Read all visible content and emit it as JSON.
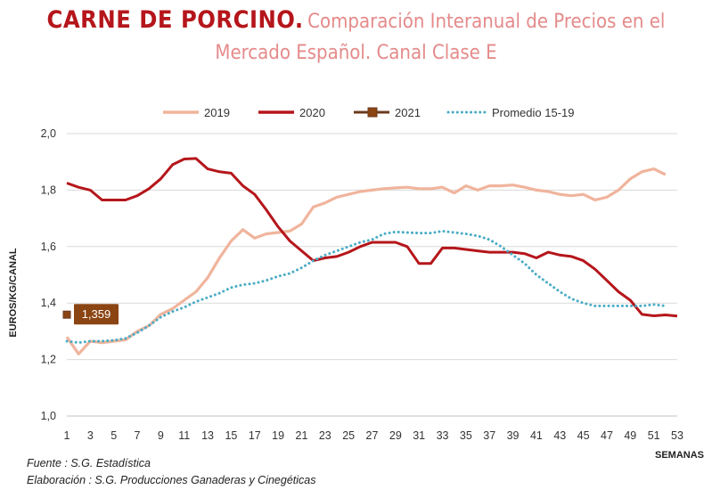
{
  "title": {
    "main": "CARNE DE PORCINO.",
    "sub_line1": "Comparación Interanual de Precios en el",
    "sub_line2": "Mercado Español. Canal Clase E"
  },
  "footer": {
    "fuente": "Fuente :  S.G. Estadística",
    "elaboracion": "Elaboración : S.G. Producciones Ganaderas y Cinegéticas"
  },
  "chart_data": {
    "type": "line",
    "xlabel": "SEMANAS",
    "ylabel": "EUROS/KG/CANAL",
    "ylim": [
      1.0,
      2.0
    ],
    "xlim": [
      1,
      53
    ],
    "y_ticks": [
      "1,0",
      "1,2",
      "1,4",
      "1,6",
      "1,8",
      "2,0"
    ],
    "x_ticks": [
      "1",
      "3",
      "5",
      "7",
      "9",
      "11",
      "13",
      "15",
      "17",
      "19",
      "21",
      "23",
      "25",
      "27",
      "29",
      "31",
      "33",
      "35",
      "37",
      "39",
      "41",
      "43",
      "45",
      "47",
      "49",
      "51",
      "53"
    ],
    "grid": "horizontal",
    "legend_position": "top",
    "series": [
      {
        "name": "2019",
        "color": "#f0b49c",
        "style": "solid",
        "x": [
          1,
          2,
          3,
          4,
          5,
          6,
          7,
          8,
          9,
          10,
          11,
          12,
          13,
          14,
          15,
          16,
          17,
          18,
          19,
          20,
          21,
          22,
          23,
          24,
          25,
          26,
          27,
          28,
          29,
          30,
          31,
          32,
          33,
          34,
          35,
          36,
          37,
          38,
          39,
          40,
          41,
          42,
          43,
          44,
          45,
          46,
          47,
          48,
          49,
          50,
          51,
          52
        ],
        "values": [
          1.28,
          1.22,
          1.265,
          1.26,
          1.265,
          1.27,
          1.3,
          1.32,
          1.36,
          1.38,
          1.41,
          1.44,
          1.49,
          1.56,
          1.62,
          1.66,
          1.63,
          1.645,
          1.65,
          1.655,
          1.68,
          1.74,
          1.755,
          1.775,
          1.785,
          1.795,
          1.8,
          1.805,
          1.808,
          1.81,
          1.805,
          1.805,
          1.81,
          1.79,
          1.815,
          1.8,
          1.815,
          1.815,
          1.818,
          1.81,
          1.8,
          1.795,
          1.785,
          1.78,
          1.785,
          1.765,
          1.775,
          1.8,
          1.84,
          1.865,
          1.875,
          1.855
        ]
      },
      {
        "name": "2020",
        "color": "#b5161b",
        "style": "solid",
        "x": [
          1,
          2,
          3,
          4,
          5,
          6,
          7,
          8,
          9,
          10,
          11,
          12,
          13,
          14,
          15,
          16,
          17,
          18,
          19,
          20,
          21,
          22,
          23,
          24,
          25,
          26,
          27,
          28,
          29,
          30,
          31,
          32,
          33,
          34,
          35,
          36,
          37,
          38,
          39,
          40,
          41,
          42,
          43,
          44,
          45,
          46,
          47,
          48,
          49,
          50,
          51,
          52,
          53
        ],
        "values": [
          1.825,
          1.81,
          1.8,
          1.765,
          1.765,
          1.765,
          1.78,
          1.805,
          1.84,
          1.89,
          1.91,
          1.912,
          1.875,
          1.865,
          1.86,
          1.815,
          1.785,
          1.73,
          1.67,
          1.62,
          1.585,
          1.55,
          1.56,
          1.565,
          1.58,
          1.6,
          1.615,
          1.615,
          1.615,
          1.6,
          1.54,
          1.54,
          1.595,
          1.595,
          1.59,
          1.585,
          1.58,
          1.58,
          1.58,
          1.575,
          1.56,
          1.58,
          1.57,
          1.565,
          1.55,
          1.52,
          1.48,
          1.44,
          1.41,
          1.36,
          1.355,
          1.358,
          1.354
        ]
      },
      {
        "name": "2021",
        "color": "#6b3a1e",
        "style": "solid-marker",
        "x": [
          1
        ],
        "values": [
          1.359
        ],
        "data_label": "1,359"
      },
      {
        "name": "Promedio 15-19",
        "color": "#4bacc6",
        "style": "dotted",
        "x": [
          1,
          2,
          3,
          4,
          5,
          6,
          7,
          8,
          9,
          10,
          11,
          12,
          13,
          14,
          15,
          16,
          17,
          18,
          19,
          20,
          21,
          22,
          23,
          24,
          25,
          26,
          27,
          28,
          29,
          30,
          31,
          32,
          33,
          34,
          35,
          36,
          37,
          38,
          39,
          40,
          41,
          42,
          43,
          44,
          45,
          46,
          47,
          48,
          49,
          50,
          51,
          52
        ],
        "values": [
          1.265,
          1.26,
          1.265,
          1.265,
          1.268,
          1.275,
          1.295,
          1.32,
          1.35,
          1.37,
          1.385,
          1.405,
          1.42,
          1.435,
          1.455,
          1.465,
          1.47,
          1.48,
          1.495,
          1.505,
          1.525,
          1.55,
          1.57,
          1.585,
          1.6,
          1.615,
          1.625,
          1.645,
          1.652,
          1.65,
          1.648,
          1.648,
          1.655,
          1.65,
          1.645,
          1.638,
          1.625,
          1.6,
          1.57,
          1.54,
          1.5,
          1.47,
          1.44,
          1.415,
          1.4,
          1.39,
          1.39,
          1.39,
          1.39,
          1.39,
          1.395,
          1.39
        ]
      }
    ]
  }
}
